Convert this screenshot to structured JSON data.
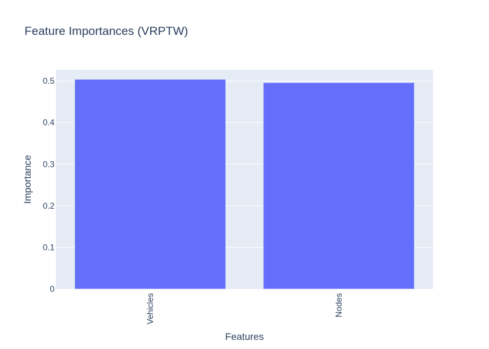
{
  "chart_data": {
    "type": "bar",
    "title": "Feature Importances (VRPTW)",
    "xlabel": "Features",
    "ylabel": "Importance",
    "categories": [
      "Vehicles",
      "Nodes"
    ],
    "values": [
      0.504,
      0.496
    ],
    "ylim": [
      0,
      0.527
    ],
    "yticks": [
      0,
      0.1,
      0.2,
      0.3,
      0.4,
      0.5
    ],
    "ytick_labels": [
      "0",
      "0.1",
      "0.2",
      "0.3",
      "0.4",
      "0.5"
    ],
    "grid": true,
    "bar_color": "#636efa",
    "plot_background": "#e5ecf6",
    "text_color": "#2a3f5f"
  }
}
